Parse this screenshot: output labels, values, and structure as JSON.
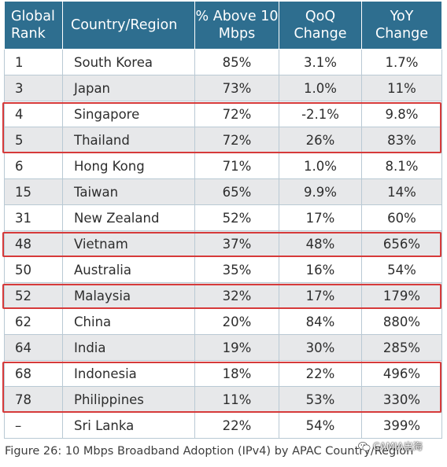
{
  "table": {
    "headers": {
      "rank": "Global Rank",
      "country": "Country/Region",
      "pct": "% Above 10 Mbps",
      "qoq": "QoQ Change",
      "yoy": "YoY Change"
    },
    "rows": [
      {
        "rank": "1",
        "country": "South Korea",
        "pct": "85%",
        "qoq": "3.1%",
        "yoy": "1.7%",
        "highlighted": false
      },
      {
        "rank": "3",
        "country": "Japan",
        "pct": "73%",
        "qoq": "1.0%",
        "yoy": "11%",
        "highlighted": false
      },
      {
        "rank": "4",
        "country": "Singapore",
        "pct": "72%",
        "qoq": "-2.1%",
        "yoy": "9.8%",
        "highlighted": true
      },
      {
        "rank": "5",
        "country": "Thailand",
        "pct": "72%",
        "qoq": "26%",
        "yoy": "83%",
        "highlighted": true
      },
      {
        "rank": "6",
        "country": "Hong Kong",
        "pct": "71%",
        "qoq": "1.0%",
        "yoy": "8.1%",
        "highlighted": false
      },
      {
        "rank": "15",
        "country": "Taiwan",
        "pct": "65%",
        "qoq": "9.9%",
        "yoy": "14%",
        "highlighted": false
      },
      {
        "rank": "31",
        "country": "New Zealand",
        "pct": "52%",
        "qoq": "17%",
        "yoy": "60%",
        "highlighted": false
      },
      {
        "rank": "48",
        "country": "Vietnam",
        "pct": "37%",
        "qoq": "48%",
        "yoy": "656%",
        "highlighted": true
      },
      {
        "rank": "50",
        "country": "Australia",
        "pct": "35%",
        "qoq": "16%",
        "yoy": "54%",
        "highlighted": false
      },
      {
        "rank": "52",
        "country": "Malaysia",
        "pct": "32%",
        "qoq": "17%",
        "yoy": "179%",
        "highlighted": true
      },
      {
        "rank": "62",
        "country": "China",
        "pct": "20%",
        "qoq": "84%",
        "yoy": "880%",
        "highlighted": false
      },
      {
        "rank": "64",
        "country": "India",
        "pct": "19%",
        "qoq": "30%",
        "yoy": "285%",
        "highlighted": false
      },
      {
        "rank": "68",
        "country": "Indonesia",
        "pct": "18%",
        "qoq": "22%",
        "yoy": "496%",
        "highlighted": true
      },
      {
        "rank": "78",
        "country": "Philippines",
        "pct": "11%",
        "qoq": "53%",
        "yoy": "330%",
        "highlighted": true
      },
      {
        "rank": "–",
        "country": "Sri Lanka",
        "pct": "22%",
        "qoq": "54%",
        "yoy": "399%",
        "highlighted": false
      }
    ]
  },
  "caption": "Figure 26: 10 Mbps Broadband Adoption (IPv4) by APAC Country/Region",
  "watermark": {
    "text": "CAMIA出海",
    "icon": "wechat-icon"
  },
  "colors": {
    "header_bg": "#2e6e8f",
    "header_text": "#ffffff",
    "row_alt_bg": "#e7e8ea",
    "row_bg": "#ffffff",
    "highlight_border": "#d63a3a"
  }
}
